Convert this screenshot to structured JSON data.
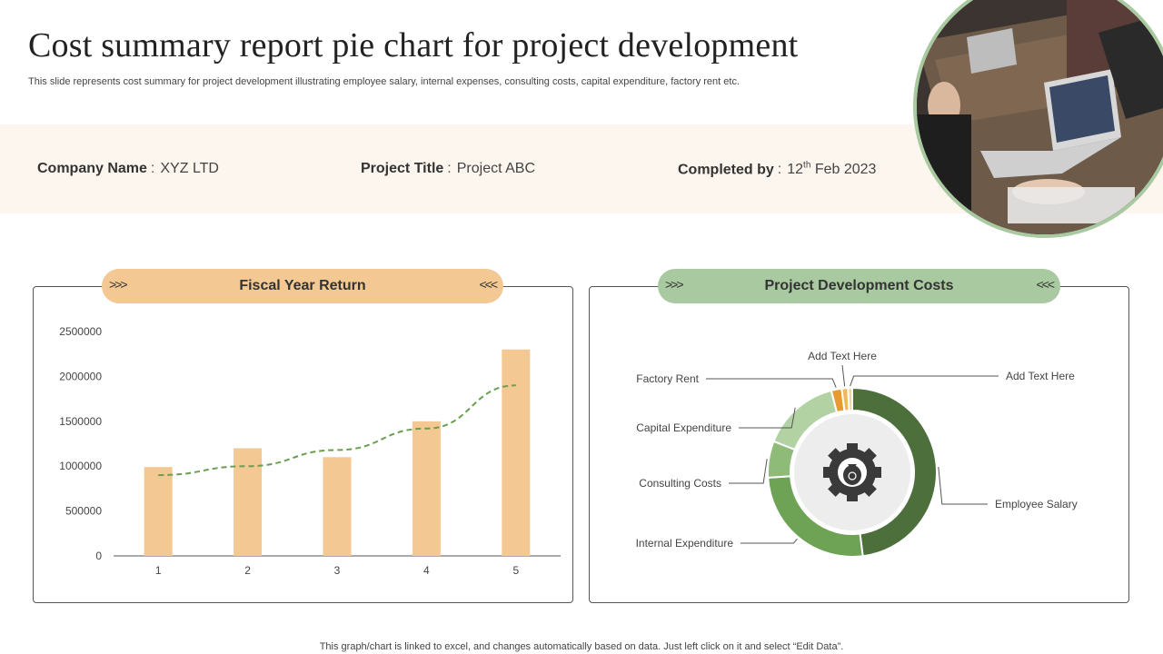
{
  "header": {
    "title": "Cost summary report pie chart for project development",
    "subtitle": "This slide represents cost summary for project development illustrating employee salary, internal expenses, consulting costs, capital expenditure, factory rent etc."
  },
  "info": {
    "company_label": "Company Name",
    "company_value": "XYZ  LTD",
    "project_label": "Project  Title",
    "project_value": "Project ABC",
    "completed_label": "Completed by",
    "completed_day": "12",
    "completed_suffix": "th",
    "completed_rest": " Feb 2023",
    "separator": ":"
  },
  "left_panel": {
    "title": "Fiscal Year Return",
    "arrows_left": ">>>",
    "arrows_right": "<<<"
  },
  "right_panel": {
    "title": "Project Development Costs",
    "arrows_left": ">>>",
    "arrows_right": "<<<"
  },
  "footnote": "This graph/chart is linked to excel,  and changes automatically based on data. Just left click on it and select “Edit Data”.",
  "colors": {
    "bar": "#f3c892",
    "trend": "#6a9e50",
    "pill_left": "#f3c892",
    "pill_right": "#a9c9a0",
    "info_band": "#fdf6ef"
  },
  "chart_data": [
    {
      "type": "bar",
      "title": "Fiscal Year Return",
      "categories": [
        "1",
        "2",
        "3",
        "4",
        "5"
      ],
      "values": [
        990000,
        1200000,
        1100000,
        1500000,
        2300000
      ],
      "trendline": {
        "style": "dashed",
        "type": "exponential",
        "values": [
          900000,
          1000000,
          1180000,
          1420000,
          1900000
        ]
      },
      "ylim": [
        0,
        2500000
      ],
      "yticks": [
        "0",
        "500000",
        "1000000",
        "1500000",
        "2000000",
        "2500000"
      ],
      "grid": false
    },
    {
      "type": "pie",
      "title": "Project Development Costs",
      "donut": true,
      "center_icon": "gear-money-bag-icon",
      "slices": [
        {
          "label": "Employee Salary",
          "value": 48,
          "color": "#4d6f3b"
        },
        {
          "label": "Internal Expenditure",
          "value": 26,
          "color": "#6ea356"
        },
        {
          "label": "Consulting Costs",
          "value": 7,
          "color": "#8fbb79"
        },
        {
          "label": "Capital Expenditure",
          "value": 15,
          "color": "#b2d2a3"
        },
        {
          "label": "Factory Rent",
          "value": 2,
          "color": "#e8992f"
        },
        {
          "label": "Add Text Here",
          "value": 1.2,
          "color": "#f0b660"
        },
        {
          "label": "Add Text Here",
          "value": 0.8,
          "color": "#f5cf9c"
        }
      ]
    }
  ]
}
